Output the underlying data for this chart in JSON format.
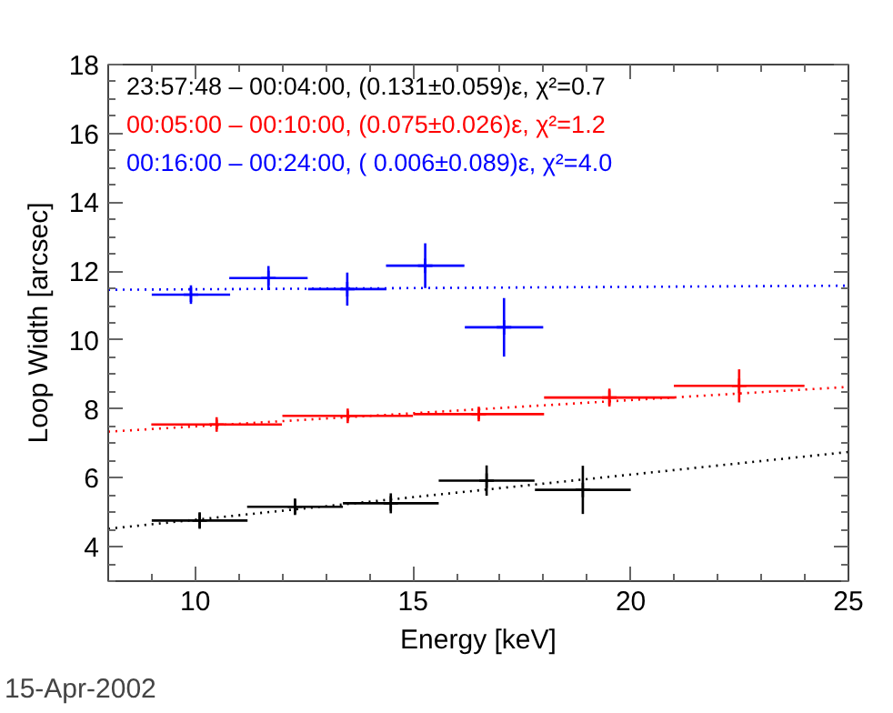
{
  "chart_data": {
    "type": "scatter",
    "xlabel": "Energy [keV]",
    "ylabel": "Loop Width [arcsec]",
    "xlim": [
      8,
      25
    ],
    "ylim": [
      3,
      18
    ],
    "xticks": [
      10,
      15,
      20,
      25
    ],
    "yticks": [
      4,
      6,
      8,
      10,
      12,
      14,
      16,
      18
    ],
    "grid": false,
    "legend": "top left",
    "annotations": [
      "15-Apr-2002"
    ],
    "series": [
      {
        "name": "23:57:48 – 00:04:00, (0.131±0.059)ε, χ²=0.7",
        "color": "#000000",
        "marker": "cross",
        "x": [
          10.1,
          12.29,
          14.49,
          16.69,
          18.9
        ],
        "values": [
          4.76,
          5.16,
          5.26,
          5.92,
          5.65
        ],
        "errors": [
          0.24,
          0.24,
          0.29,
          0.44,
          0.7
        ],
        "xerrors": [
          1.1,
          1.1,
          1.1,
          1.1,
          1.1
        ]
      },
      {
        "name": "00:05:00 – 00:10:00, (0.075±0.026)ε, χ²=1.2",
        "color": "#ff0000",
        "marker": "cross",
        "x": [
          10.49,
          13.5,
          16.51,
          19.51,
          22.49
        ],
        "values": [
          7.55,
          7.8,
          7.85,
          8.33,
          8.67
        ],
        "errors": [
          0.14,
          0.15,
          0.15,
          0.26,
          0.48
        ],
        "xerrors": [
          1.5,
          1.5,
          1.5,
          1.5,
          1.5
        ]
      },
      {
        "name": "00:16:00 – 00:24:00, ( 0.006±0.089)ε, χ²=4.0",
        "color": "#0000ff",
        "marker": "cross",
        "x": [
          9.9,
          11.68,
          13.49,
          15.28,
          17.09
        ],
        "values": [
          11.32,
          11.8,
          11.48,
          12.16,
          10.37
        ],
        "errors": [
          0.27,
          0.35,
          0.48,
          0.65,
          0.85
        ],
        "xerrors": [
          0.9,
          0.9,
          0.9,
          0.9,
          0.9
        ]
      },
      {
        "type": "line",
        "line_style": "dotted",
        "color": "#000000",
        "x": [
          8,
          25
        ],
        "values": [
          4.52,
          6.75
        ]
      },
      {
        "type": "line",
        "line_style": "dotted",
        "color": "#ff0000",
        "x": [
          8,
          25
        ],
        "values": [
          7.34,
          8.64
        ]
      },
      {
        "type": "line",
        "line_style": "dotted",
        "color": "#0000ff",
        "x": [
          8,
          25
        ],
        "values": [
          11.46,
          11.58
        ]
      }
    ]
  }
}
